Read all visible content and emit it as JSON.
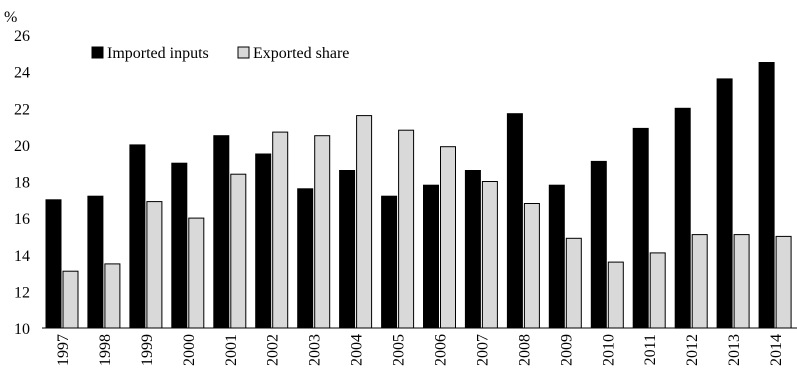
{
  "chart_data": {
    "type": "bar",
    "ylabel": "%",
    "ylim": [
      10,
      26
    ],
    "yticks": [
      10,
      12,
      14,
      16,
      18,
      20,
      22,
      24,
      26
    ],
    "grid": false,
    "legend_position": "top-left",
    "categories": [
      "1997",
      "1998",
      "1999",
      "2000",
      "2001",
      "2002",
      "2003",
      "2004",
      "2005",
      "2006",
      "2007",
      "2008",
      "2009",
      "2010",
      "2011",
      "2012",
      "2013",
      "2014"
    ],
    "series": [
      {
        "name": "Imported inputs",
        "color": "#000000",
        "values": [
          17.0,
          17.2,
          20.0,
          19.0,
          20.5,
          19.5,
          17.6,
          18.6,
          17.2,
          17.8,
          18.6,
          21.7,
          17.8,
          19.1,
          20.9,
          22.0,
          23.6,
          24.5
        ]
      },
      {
        "name": "Exported share",
        "color": "#d9d9d9",
        "values": [
          13.1,
          13.5,
          16.9,
          16.0,
          18.4,
          20.7,
          20.5,
          21.6,
          20.8,
          19.9,
          18.0,
          16.8,
          14.9,
          13.6,
          14.1,
          15.1,
          15.1,
          15.0
        ]
      }
    ]
  }
}
